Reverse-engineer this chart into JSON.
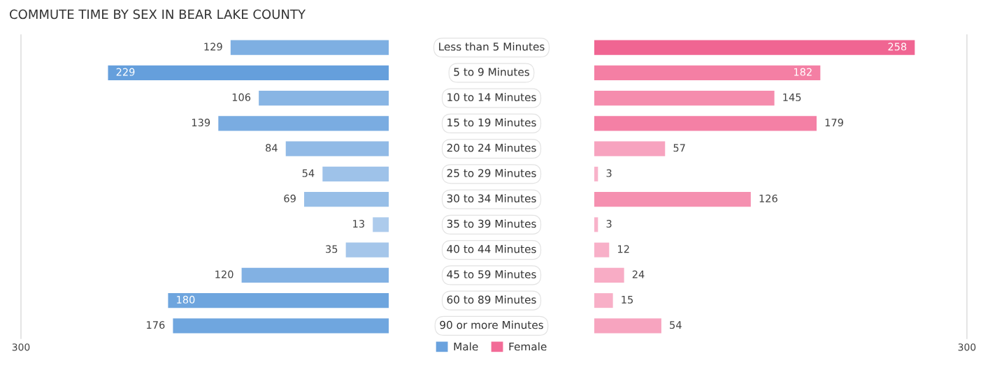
{
  "chart_data": [
    {
      "type": "bar",
      "orientation": "horizontal",
      "title": "COMMUTE TIME BY SEX IN BEAR LAKE COUNTY",
      "categories": [
        "Less than 5 Minutes",
        "5 to 9 Minutes",
        "10 to 14 Minutes",
        "15 to 19 Minutes",
        "20 to 24 Minutes",
        "25 to 29 Minutes",
        "30 to 34 Minutes",
        "35 to 39 Minutes",
        "40 to 44 Minutes",
        "45 to 59 Minutes",
        "60 to 89 Minutes",
        "90 or more Minutes"
      ],
      "series": [
        {
          "name": "Male",
          "color": "#6aa2de",
          "colors": [
            "#7eafe2",
            "#659fdc",
            "#88b5e4",
            "#7aace1",
            "#91bae6",
            "#9ec2e9",
            "#97bee7",
            "#adcbec",
            "#a5c6ea",
            "#82b1e3",
            "#6ea5de",
            "#6fa6df"
          ],
          "values": [
            129,
            229,
            106,
            139,
            84,
            54,
            69,
            13,
            35,
            120,
            180,
            176
          ]
        }
      ],
      "xlim": [
        300,
        0
      ],
      "xticks": [
        300
      ],
      "data_labels": true,
      "legend": "bottom"
    },
    {
      "type": "bar",
      "orientation": "horizontal",
      "categories": [
        "Less than 5 Minutes",
        "5 to 9 Minutes",
        "10 to 14 Minutes",
        "15 to 19 Minutes",
        "20 to 24 Minutes",
        "25 to 29 Minutes",
        "30 to 34 Minutes",
        "35 to 39 Minutes",
        "40 to 44 Minutes",
        "45 to 59 Minutes",
        "60 to 89 Minutes",
        "90 or more Minutes"
      ],
      "series": [
        {
          "name": "Female",
          "color": "#f26b97",
          "colors": [
            "#f06592",
            "#f47fa4",
            "#f58cad",
            "#f480a5",
            "#f7a3bf",
            "#f8b3ca",
            "#f590b0",
            "#f8b3ca",
            "#f8b0c8",
            "#f8acc5",
            "#f8afc7",
            "#f7a4bf"
          ],
          "values": [
            258,
            182,
            145,
            179,
            57,
            3,
            126,
            3,
            12,
            24,
            15,
            54
          ]
        }
      ],
      "xlim": [
        0,
        300
      ],
      "xticks": [
        300
      ],
      "data_labels": true,
      "legend": "bottom",
      "tick_labels": "x"
    }
  ]
}
